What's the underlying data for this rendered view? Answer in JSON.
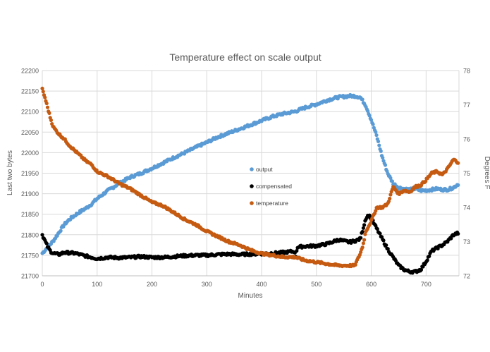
{
  "chart_data": {
    "type": "scatter",
    "title": "Temperature effect on scale output",
    "xlabel": "Minutes",
    "ylabel": "Last two bytes",
    "y2label": "Degrees F",
    "xlim": [
      0,
      760
    ],
    "ylim": [
      21700,
      22200
    ],
    "y2lim": [
      72,
      78
    ],
    "x_ticks": [
      0,
      100,
      200,
      300,
      400,
      500,
      600,
      700
    ],
    "y_ticks": [
      21700,
      21750,
      21800,
      21850,
      21900,
      21950,
      22000,
      22050,
      22100,
      22150,
      22200
    ],
    "y2_ticks": [
      72,
      73,
      74,
      75,
      76,
      77,
      78
    ],
    "grid": true,
    "legend_position": "center",
    "series": [
      {
        "name": "output",
        "axis": "left",
        "color": "#5B9BD5",
        "x": [
          0,
          10,
          20,
          30,
          40,
          50,
          60,
          70,
          80,
          90,
          100,
          110,
          120,
          140,
          160,
          180,
          200,
          220,
          240,
          260,
          280,
          300,
          320,
          340,
          360,
          380,
          400,
          420,
          440,
          460,
          480,
          500,
          520,
          540,
          560,
          570,
          580,
          590,
          600,
          610,
          620,
          630,
          640,
          650,
          660,
          670,
          680,
          690,
          700,
          710,
          720,
          730,
          740,
          750,
          760
        ],
        "values": [
          21755,
          21770,
          21785,
          21805,
          21825,
          21838,
          21848,
          21857,
          21865,
          21875,
          21888,
          21898,
          21908,
          21925,
          21940,
          21950,
          21962,
          21975,
          21988,
          22000,
          22013,
          22025,
          22038,
          22048,
          22058,
          22068,
          22078,
          22088,
          22095,
          22100,
          22110,
          22118,
          22128,
          22135,
          22138,
          22138,
          22135,
          22115,
          22080,
          22040,
          21990,
          21950,
          21925,
          21915,
          21912,
          21910,
          21912,
          21908,
          21908,
          21910,
          21912,
          21910,
          21910,
          21915,
          21925
        ]
      },
      {
        "name": "compensated",
        "axis": "left",
        "color": "#000000",
        "x": [
          0,
          5,
          10,
          15,
          20,
          30,
          40,
          60,
          80,
          100,
          120,
          140,
          160,
          180,
          200,
          220,
          240,
          260,
          280,
          300,
          320,
          340,
          360,
          380,
          400,
          420,
          440,
          460,
          462,
          465,
          480,
          500,
          520,
          540,
          560,
          570,
          580,
          590,
          595,
          600,
          610,
          620,
          630,
          640,
          650,
          660,
          670,
          680,
          690,
          700,
          710,
          720,
          730,
          740,
          750,
          760
        ],
        "values": [
          21800,
          21785,
          21770,
          21760,
          21755,
          21752,
          21757,
          21755,
          21748,
          21742,
          21745,
          21744,
          21745,
          21747,
          21745,
          21745,
          21747,
          21749,
          21750,
          21750,
          21752,
          21753,
          21752,
          21753,
          21754,
          21755,
          21757,
          21760,
          21745,
          21770,
          21772,
          21773,
          21778,
          21788,
          21782,
          21785,
          21790,
          21840,
          21848,
          21840,
          21815,
          21790,
          21765,
          21745,
          21725,
          21715,
          21710,
          21710,
          21715,
          21735,
          21760,
          21768,
          21775,
          21785,
          21800,
          21805
        ]
      },
      {
        "name": "temperature",
        "axis": "right",
        "color": "#C55A11",
        "x": [
          0,
          5,
          10,
          15,
          20,
          30,
          40,
          50,
          60,
          70,
          80,
          90,
          100,
          120,
          140,
          160,
          180,
          200,
          220,
          240,
          260,
          280,
          300,
          320,
          340,
          360,
          380,
          400,
          420,
          440,
          460,
          480,
          500,
          520,
          540,
          560,
          570,
          580,
          585,
          590,
          600,
          610,
          620,
          625,
          630,
          640,
          650,
          660,
          670,
          680,
          690,
          700,
          710,
          720,
          730,
          740,
          750,
          760
        ],
        "values": [
          77.45,
          77.2,
          76.9,
          76.6,
          76.35,
          76.15,
          76.0,
          75.8,
          75.65,
          75.5,
          75.35,
          75.25,
          75.05,
          74.9,
          74.7,
          74.55,
          74.35,
          74.15,
          74.05,
          73.85,
          73.65,
          73.5,
          73.3,
          73.15,
          73.0,
          72.9,
          72.75,
          72.65,
          72.6,
          72.55,
          72.55,
          72.45,
          72.4,
          72.35,
          72.3,
          72.3,
          72.3,
          72.65,
          72.9,
          73.3,
          73.6,
          74.0,
          74.0,
          74.05,
          74.1,
          74.6,
          74.4,
          74.5,
          74.45,
          74.6,
          74.65,
          74.8,
          75.0,
          75.05,
          74.95,
          75.15,
          75.4,
          75.3
        ]
      }
    ]
  }
}
